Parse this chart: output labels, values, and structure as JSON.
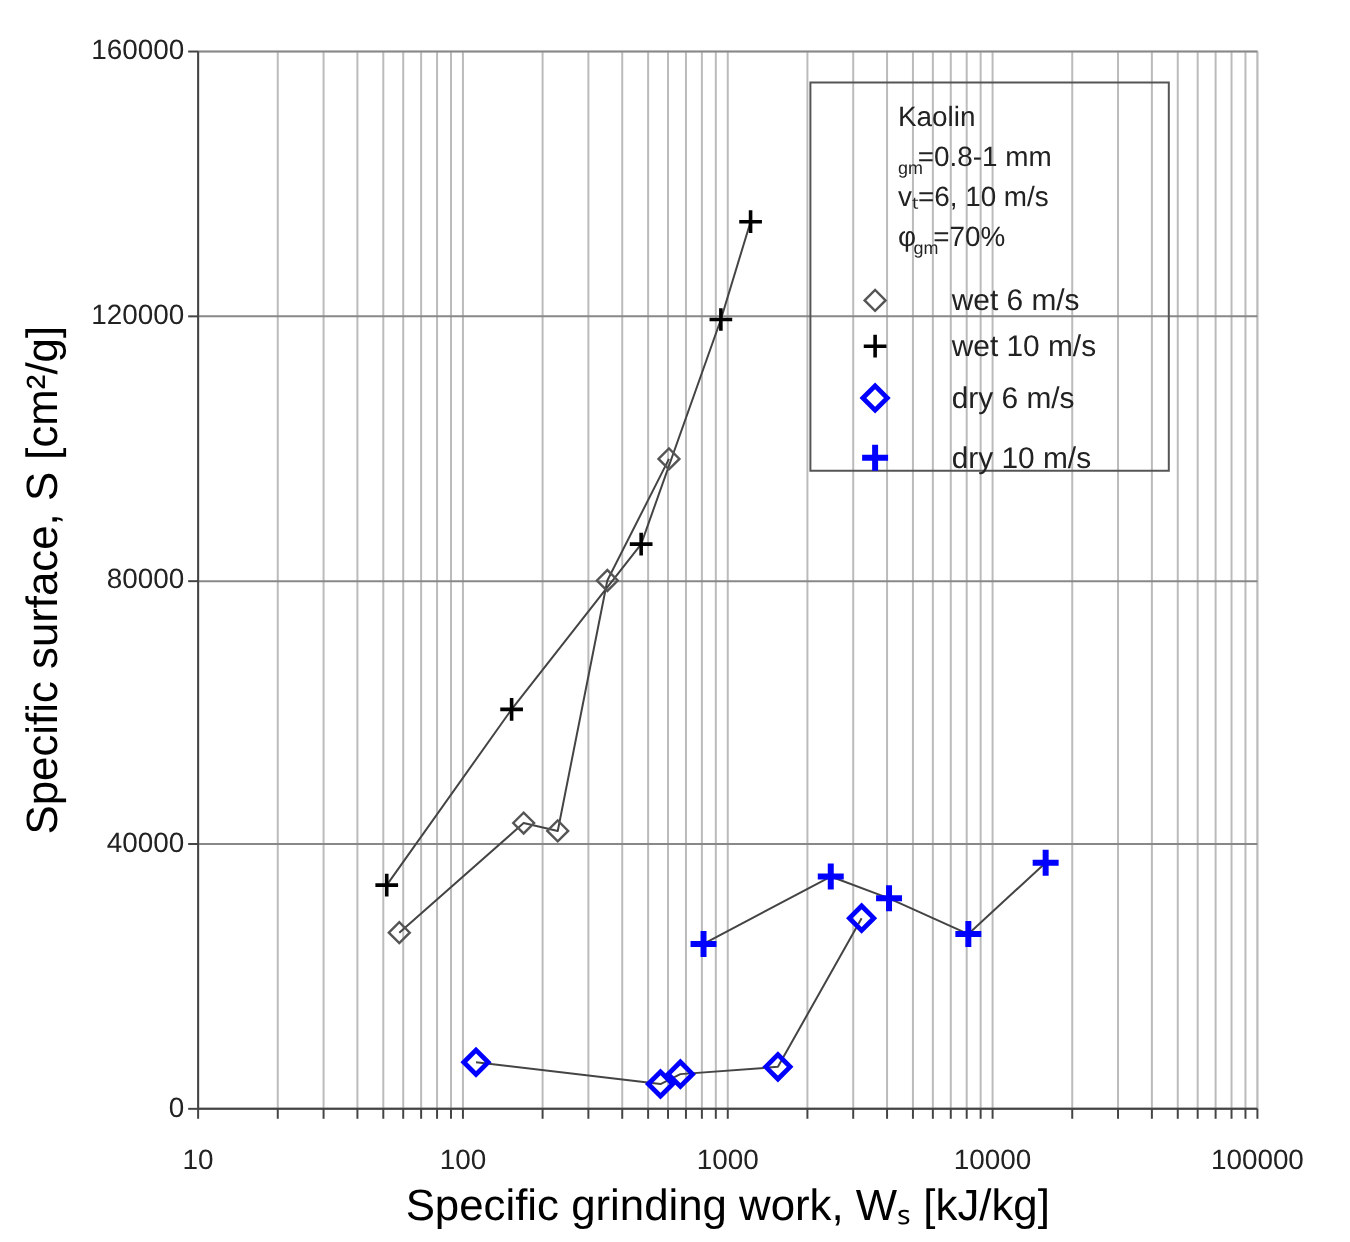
{
  "chart_data": {
    "type": "line",
    "xlabel": "Specific grinding work, Wₛ [kJ/kg]",
    "ylabel": "Specific surface, S [cm²/g]",
    "annotations": [
      "Kaolin",
      "$_{gm}$=0.8-1 mm",
      "vₜ=6, 10 m/s",
      "φ$_{gm}$=70%"
    ],
    "log": "x",
    "grid": true,
    "legend": "top right",
    "line_style": "solid",
    "xlim": [
      10,
      100000
    ],
    "ylim": [
      0,
      160000
    ],
    "xticks": [
      10,
      {
        "value": 20,
        "label": null
      },
      {
        "value": 30,
        "label": null
      },
      {
        "value": 40,
        "label": null
      },
      {
        "value": 50,
        "label": null
      },
      {
        "value": 60,
        "label": null
      },
      {
        "value": 70,
        "label": null
      },
      {
        "value": 80,
        "label": null
      },
      {
        "value": 90,
        "label": null
      },
      100,
      {
        "value": 200,
        "label": null
      },
      {
        "value": 300,
        "label": null
      },
      {
        "value": 400,
        "label": null
      },
      {
        "value": 500,
        "label": null
      },
      {
        "value": 600,
        "label": null
      },
      {
        "value": 700,
        "label": null
      },
      {
        "value": 800,
        "label": null
      },
      {
        "value": 900,
        "label": null
      },
      1000,
      {
        "value": 2000,
        "label": null
      },
      {
        "value": 3000,
        "label": null
      },
      {
        "value": 4000,
        "label": null
      },
      {
        "value": 5000,
        "label": null
      },
      {
        "value": 6000,
        "label": null
      },
      {
        "value": 7000,
        "label": null
      },
      {
        "value": 8000,
        "label": null
      },
      {
        "value": 9000,
        "label": null
      },
      10000,
      {
        "value": 20000,
        "label": null
      },
      {
        "value": 30000,
        "label": null
      },
      {
        "value": 40000,
        "label": null
      },
      {
        "value": 50000,
        "label": null
      },
      {
        "value": 60000,
        "label": null
      },
      {
        "value": 70000,
        "label": null
      },
      {
        "value": 80000,
        "label": null
      },
      {
        "value": 90000,
        "label": null
      },
      100000
    ],
    "yticks": [
      0,
      40000,
      80000,
      120000,
      160000
    ],
    "series": [
      {
        "name": "wet 6 m/s",
        "color": "#555555",
        "marker": "diamond",
        "x": [
          58,
          171,
          230,
          354,
          605
        ],
        "values": [
          26500,
          43100,
          41900,
          79800,
          98200
        ]
      },
      {
        "name": "wet 10 m/s",
        "color": "#000000",
        "marker": "cross",
        "x": [
          52,
          154,
          475,
          950,
          1230
        ],
        "values": [
          33700,
          60300,
          85300,
          119300,
          134100
        ]
      },
      {
        "name": "dry 6 m/s",
        "color": "#0000ff",
        "marker": "diamond",
        "x": [
          113,
          562,
          668,
          1560,
          3230
        ],
        "values": [
          6900,
          3600,
          5100,
          6200,
          28700
        ]
      },
      {
        "name": "dry 10 m/s",
        "color": "#0000ff",
        "marker": "cross",
        "x": [
          817,
          2470,
          4100,
          8170,
          16000
        ],
        "values": [
          24800,
          35000,
          31700,
          26300,
          37100
        ]
      }
    ]
  }
}
